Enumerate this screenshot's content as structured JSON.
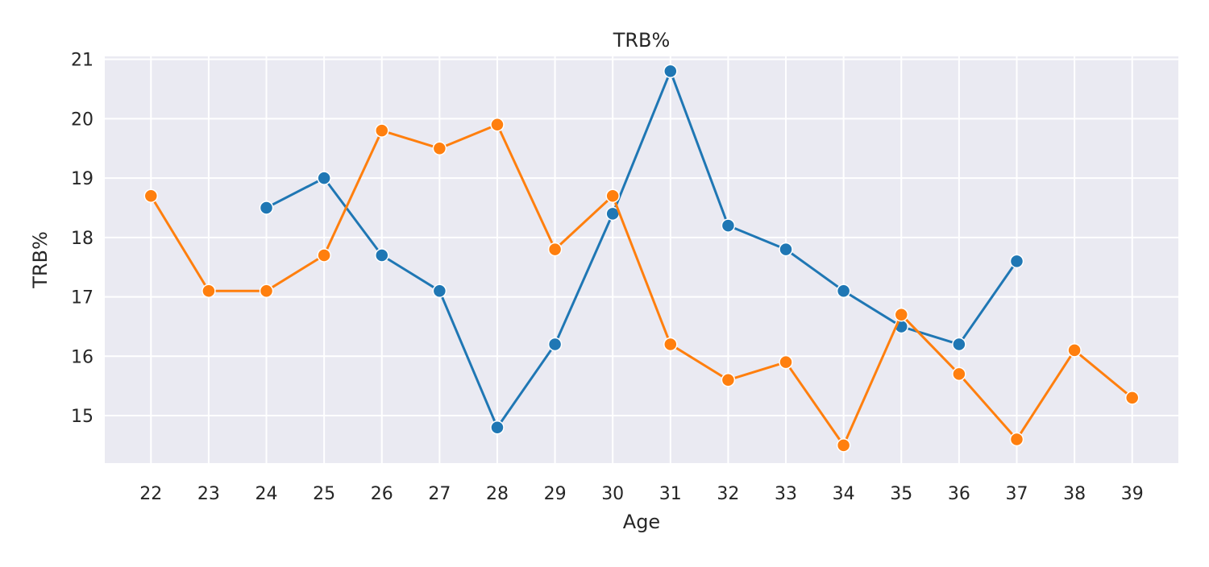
{
  "chart_data": {
    "type": "line",
    "title": "TRB%",
    "xlabel": "Age",
    "ylabel": "TRB%",
    "x": [
      22,
      23,
      24,
      25,
      26,
      27,
      28,
      29,
      30,
      31,
      32,
      33,
      34,
      35,
      36,
      37,
      38,
      39
    ],
    "xticks": [
      "22",
      "23",
      "24",
      "25",
      "26",
      "27",
      "28",
      "29",
      "30",
      "31",
      "32",
      "33",
      "34",
      "35",
      "36",
      "37",
      "38",
      "39"
    ],
    "yticks": [
      "15",
      "16",
      "17",
      "18",
      "19",
      "20",
      "21"
    ],
    "ylim": [
      14.2,
      21.05
    ],
    "xlim": [
      21.2,
      39.8
    ],
    "grid": true,
    "background": "#eaeaf2",
    "series": [
      {
        "color": "#1f77b4",
        "points": [
          [
            24,
            18.5
          ],
          [
            25,
            19.0
          ],
          [
            26,
            17.7
          ],
          [
            27,
            17.1
          ],
          [
            28,
            14.8
          ],
          [
            29,
            16.2
          ],
          [
            30,
            18.4
          ],
          [
            31,
            20.8
          ],
          [
            32,
            18.2
          ],
          [
            33,
            17.8
          ],
          [
            34,
            17.1
          ],
          [
            35,
            16.5
          ],
          [
            36,
            16.2
          ],
          [
            37,
            17.6
          ]
        ]
      },
      {
        "color": "#ff7f0e",
        "points": [
          [
            22,
            18.7
          ],
          [
            23,
            17.1
          ],
          [
            24,
            17.1
          ],
          [
            25,
            17.7
          ],
          [
            26,
            19.8
          ],
          [
            27,
            19.5
          ],
          [
            28,
            19.9
          ],
          [
            29,
            17.8
          ],
          [
            30,
            18.7
          ],
          [
            31,
            16.2
          ],
          [
            32,
            15.6
          ],
          [
            33,
            15.9
          ],
          [
            34,
            14.5
          ],
          [
            35,
            16.7
          ],
          [
            36,
            15.7
          ],
          [
            37,
            14.6
          ],
          [
            38,
            16.1
          ],
          [
            39,
            15.3
          ]
        ]
      }
    ]
  }
}
